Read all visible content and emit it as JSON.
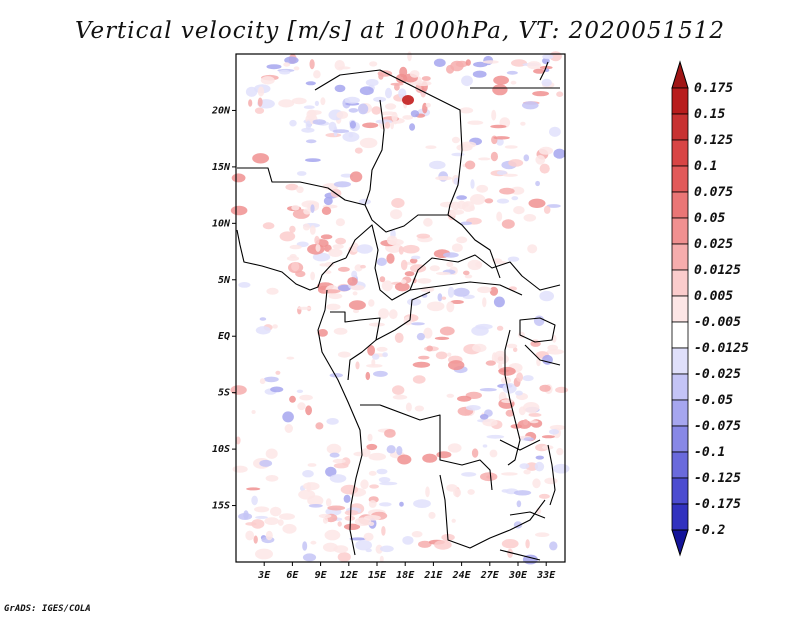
{
  "chart_data": {
    "type": "heatmap",
    "title": "Vertical velocity [m/s] at 1000hPa, VT: 2020051512",
    "variable": "Vertical velocity",
    "units": "m/s",
    "level": "1000hPa",
    "valid_time": "2020051512",
    "lon_range": [
      0,
      35
    ],
    "lat_range": [
      -20,
      25
    ],
    "x_ticks": [
      {
        "value": 3,
        "label": "3E"
      },
      {
        "value": 6,
        "label": "6E"
      },
      {
        "value": 9,
        "label": "9E"
      },
      {
        "value": 12,
        "label": "12E"
      },
      {
        "value": 15,
        "label": "15E"
      },
      {
        "value": 18,
        "label": "18E"
      },
      {
        "value": 21,
        "label": "21E"
      },
      {
        "value": 24,
        "label": "24E"
      },
      {
        "value": 27,
        "label": "27E"
      },
      {
        "value": 30,
        "label": "30E"
      },
      {
        "value": 33,
        "label": "33E"
      }
    ],
    "y_ticks": [
      {
        "value": 20,
        "label": "20N"
      },
      {
        "value": 15,
        "label": "15N"
      },
      {
        "value": 10,
        "label": "10N"
      },
      {
        "value": 5,
        "label": "5N"
      },
      {
        "value": 0,
        "label": "EQ"
      },
      {
        "value": -5,
        "label": "5S"
      },
      {
        "value": -10,
        "label": "10S"
      },
      {
        "value": -15,
        "label": "15S"
      }
    ],
    "colorbar": {
      "levels": [
        {
          "label": "0.175",
          "color": "#b81d1d"
        },
        {
          "label": "0.15",
          "color": "#c83232"
        },
        {
          "label": "0.125",
          "color": "#d84545"
        },
        {
          "label": "0.1",
          "color": "#e25a5a"
        },
        {
          "label": "0.075",
          "color": "#ea7676"
        },
        {
          "label": "0.05",
          "color": "#f09090"
        },
        {
          "label": "0.025",
          "color": "#f6adad"
        },
        {
          "label": "0.0125",
          "color": "#fbcccc"
        },
        {
          "label": "0.005",
          "color": "#fde6e6"
        },
        {
          "label": "-0.005",
          "color": "#ffffff"
        },
        {
          "label": "-0.0125",
          "color": "#e0e0fb"
        },
        {
          "label": "-0.025",
          "color": "#c4c4f6"
        },
        {
          "label": "-0.05",
          "color": "#a6a6ef"
        },
        {
          "label": "-0.075",
          "color": "#8888e6"
        },
        {
          "label": "-0.1",
          "color": "#6a6adc"
        },
        {
          "label": "-0.125",
          "color": "#4c4cd0"
        },
        {
          "label": "-0.175",
          "color": "#3232bf"
        },
        {
          "label": "-0.2",
          "color": "#1c1cae"
        }
      ],
      "top_arrow_color": "#a01616",
      "bottom_arrow_color": "#14149a"
    }
  },
  "credit": "GrADS: IGES/COLA"
}
